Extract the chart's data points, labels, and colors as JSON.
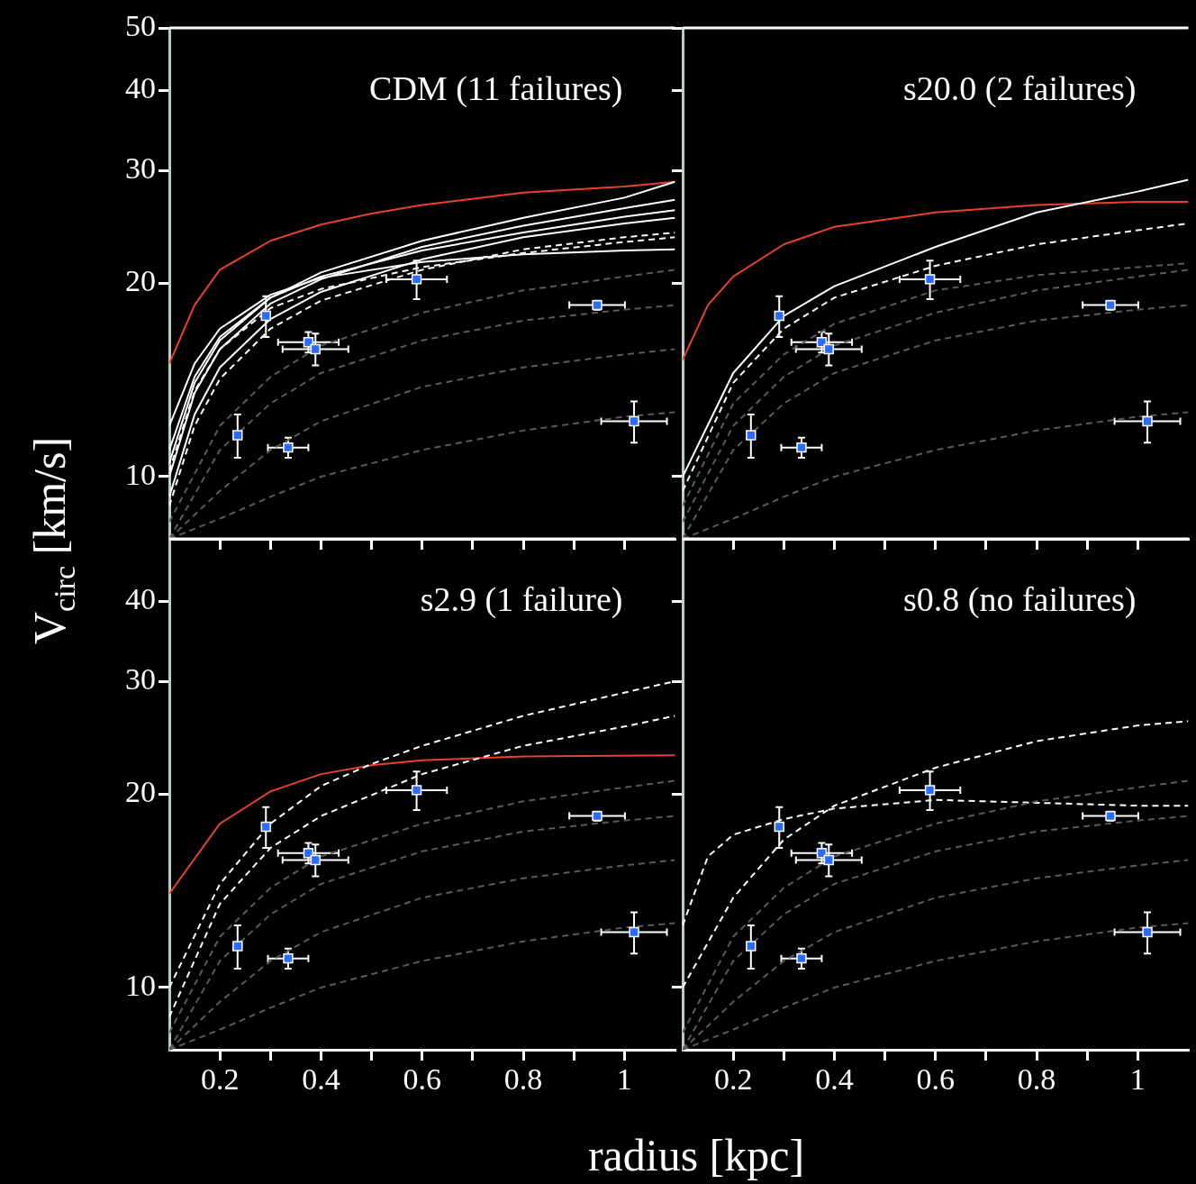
{
  "chart_data": [
    {
      "type": "line",
      "xlim": [
        0.1,
        1.1
      ],
      "ylim": [
        8,
        50
      ],
      "log": "y",
      "grid": false,
      "tick_labels": "y",
      "ylabel": "V$_{circ}$ [km/s]",
      "annotations": [
        "CDM (11 failures)"
      ],
      "xticks": [
        {
          "value": 0.2,
          "label": null
        },
        {
          "value": 0.3,
          "label": null
        },
        {
          "value": 0.4,
          "label": null
        },
        {
          "value": 0.5,
          "label": null
        },
        {
          "value": 0.6,
          "label": null
        },
        {
          "value": 0.7,
          "label": null
        },
        {
          "value": 0.8,
          "label": null
        },
        {
          "value": 0.9,
          "label": null
        },
        {
          "value": 1,
          "label": null
        }
      ],
      "yticks": [
        10,
        20,
        30,
        40,
        50
      ],
      "series": [
        {
          "color": "#5a5a5a",
          "line_style": "dashed",
          "marker": "none",
          "x": [
            0.1,
            0.2,
            0.3,
            0.4,
            0.6,
            0.8,
            1.0,
            1.1
          ],
          "values": [
            8.5,
            12,
            14.3,
            16,
            18,
            19.5,
            20.5,
            21
          ]
        },
        {
          "color": "#5a5a5a",
          "line_style": "dashed",
          "marker": "none",
          "x": [
            0.1,
            0.2,
            0.3,
            0.4,
            0.6,
            0.8,
            1.0,
            1.1
          ],
          "values": [
            8,
            11,
            13,
            14.5,
            16.3,
            17.5,
            18.2,
            18.5
          ]
        },
        {
          "color": "#5a5a5a",
          "line_style": "dashed",
          "marker": "none",
          "x": [
            0.1,
            0.2,
            0.3,
            0.4,
            0.6,
            0.8,
            1.0,
            1.1
          ],
          "values": [
            8,
            9.5,
            11,
            12.2,
            13.8,
            14.8,
            15.5,
            15.8
          ]
        },
        {
          "color": "#5a5a5a",
          "line_style": "dashed",
          "marker": "none",
          "x": [
            0.1,
            0.2,
            0.3,
            0.4,
            0.6,
            0.8,
            1.0,
            1.1
          ],
          "values": [
            8,
            8.6,
            9.3,
            10,
            11,
            11.8,
            12.4,
            12.6
          ]
        },
        {
          "color": "#ffffff",
          "line_style": "solid",
          "marker": "none",
          "x": [
            0.1,
            0.15,
            0.2,
            0.3,
            0.4,
            0.6,
            0.8,
            1.0,
            1.1
          ],
          "values": [
            10.5,
            14,
            16.3,
            19,
            20.8,
            23.3,
            25.3,
            27.2,
            28.8
          ]
        },
        {
          "color": "#ffffff",
          "line_style": "solid",
          "marker": "none",
          "x": [
            0.1,
            0.15,
            0.2,
            0.3,
            0.4,
            0.6,
            0.8,
            1.0,
            1.1
          ],
          "values": [
            10,
            13.5,
            15.8,
            18.6,
            20.3,
            22.8,
            24.6,
            26.2,
            27
          ]
        },
        {
          "color": "#ffffff",
          "line_style": "solid",
          "marker": "none",
          "x": [
            0.1,
            0.15,
            0.2,
            0.3,
            0.4,
            0.6,
            0.8,
            1.0,
            1.1
          ],
          "values": [
            11,
            14.3,
            16.5,
            19,
            20.5,
            22.5,
            24,
            25.4,
            26
          ]
        },
        {
          "color": "#ffffff",
          "line_style": "solid",
          "marker": "none",
          "x": [
            0.1,
            0.15,
            0.2,
            0.3,
            0.4,
            0.6,
            0.8,
            1.0,
            1.1
          ],
          "values": [
            12,
            15,
            17,
            19.2,
            20.4,
            21.6,
            22.2,
            22.5,
            22.6
          ]
        },
        {
          "color": "#ffffff",
          "line_style": "solid",
          "marker": "none",
          "x": [
            0.1,
            0.15,
            0.2,
            0.3,
            0.4,
            0.6,
            0.8,
            1.0,
            1.1
          ],
          "values": [
            9.3,
            12.5,
            14.8,
            17.6,
            19.4,
            21.8,
            23.6,
            24.8,
            25.3
          ]
        },
        {
          "color": "#ffffff",
          "line_style": "dashed",
          "marker": "none",
          "x": [
            0.1,
            0.15,
            0.2,
            0.3,
            0.4,
            0.6,
            0.8,
            1.0,
            1.1
          ],
          "values": [
            9,
            12,
            14.2,
            17,
            18.8,
            21,
            22.6,
            23.6,
            24
          ]
        },
        {
          "color": "#ffffff",
          "line_style": "dashed",
          "marker": "none",
          "x": [
            0.1,
            0.15,
            0.2,
            0.3,
            0.4,
            0.6,
            0.8,
            1.0,
            1.1
          ],
          "values": [
            10.2,
            13.6,
            15.8,
            18.3,
            19.6,
            21.2,
            22.3,
            23.2,
            23.6
          ]
        },
        {
          "color": "#e8412c",
          "line_style": "solid",
          "marker": "none",
          "x": [
            0.1,
            0.15,
            0.2,
            0.3,
            0.4,
            0.5,
            0.6,
            0.8,
            1.0,
            1.1
          ],
          "values": [
            15,
            18.5,
            21,
            23.3,
            24.7,
            25.7,
            26.5,
            27.7,
            28.3,
            28.8
          ]
        },
        {
          "type": "scatter",
          "color": "#2b6bff",
          "marker": "square",
          "x": [
            0.235,
            0.291,
            0.335,
            0.375,
            0.389,
            0.589,
            0.946,
            1.019
          ],
          "values": [
            11.6,
            17.8,
            11.1,
            16.2,
            15.8,
            20.3,
            18.5,
            12.2
          ],
          "errors": [
            0.9,
            1.3,
            0.4,
            0.6,
            0.9,
            1.4,
            0.3,
            0.9
          ],
          "xerrors": [
            null,
            null,
            0.04,
            0.06,
            0.065,
            0.06,
            0.055,
            0.065
          ]
        }
      ]
    },
    {
      "type": "line",
      "xlim": [
        0.1,
        1.1
      ],
      "ylim": [
        8,
        50
      ],
      "log": "y",
      "grid": false,
      "tick_labels": false,
      "annotations": [
        "s20.0 (2 failures)"
      ],
      "xticks": [
        {
          "value": 0.2,
          "label": null
        },
        {
          "value": 0.3,
          "label": null
        },
        {
          "value": 0.4,
          "label": null
        },
        {
          "value": 0.5,
          "label": null
        },
        {
          "value": 0.6,
          "label": null
        },
        {
          "value": 0.7,
          "label": null
        },
        {
          "value": 0.8,
          "label": null
        },
        {
          "value": 0.9,
          "label": null
        },
        {
          "value": 1,
          "label": null
        }
      ],
      "yticks": [
        10,
        20,
        30,
        40,
        50
      ],
      "series": [
        {
          "color": "#5a5a5a",
          "line_style": "dashed",
          "marker": "none",
          "x": [
            0.1,
            0.2,
            0.3,
            0.4,
            0.6,
            0.8,
            1.0,
            1.1
          ],
          "values": [
            8.5,
            12,
            14.3,
            16,
            18,
            19.5,
            20.5,
            21
          ]
        },
        {
          "color": "#5a5a5a",
          "line_style": "dashed",
          "marker": "none",
          "x": [
            0.1,
            0.2,
            0.3,
            0.4,
            0.6,
            0.8,
            1.0,
            1.1
          ],
          "values": [
            8,
            11,
            13,
            14.5,
            16.3,
            17.5,
            18.2,
            18.5
          ]
        },
        {
          "color": "#5a5a5a",
          "line_style": "dashed",
          "marker": "none",
          "x": [
            0.1,
            0.2,
            0.3,
            0.4,
            0.6,
            0.8,
            1.0,
            1.1
          ],
          "values": [
            9,
            13,
            15.5,
            17.3,
            19.5,
            20.6,
            21.2,
            21.5
          ]
        },
        {
          "color": "#5a5a5a",
          "line_style": "dashed",
          "marker": "none",
          "x": [
            0.1,
            0.2,
            0.3,
            0.4,
            0.6,
            0.8,
            1.0,
            1.1
          ],
          "values": [
            8,
            8.6,
            9.3,
            10,
            11,
            11.8,
            12.4,
            12.6
          ]
        },
        {
          "color": "#ffffff",
          "line_style": "solid",
          "marker": "none",
          "x": [
            0.1,
            0.2,
            0.3,
            0.4,
            0.6,
            0.8,
            1.0,
            1.1
          ],
          "values": [
            10,
            14.5,
            17.8,
            19.8,
            22.8,
            25.8,
            27.8,
            29
          ]
        },
        {
          "color": "#ffffff",
          "line_style": "dashed",
          "marker": "none",
          "x": [
            0.1,
            0.2,
            0.3,
            0.4,
            0.6,
            0.8,
            1.0,
            1.1
          ],
          "values": [
            9.5,
            14,
            17,
            19,
            21.3,
            23,
            24.2,
            24.8
          ]
        },
        {
          "color": "#e8412c",
          "line_style": "solid",
          "marker": "none",
          "x": [
            0.1,
            0.15,
            0.2,
            0.3,
            0.4,
            0.6,
            0.8,
            1.0,
            1.1
          ],
          "values": [
            15.2,
            18.5,
            20.5,
            23,
            24.5,
            25.8,
            26.5,
            26.8,
            26.8
          ]
        },
        {
          "type": "scatter",
          "color": "#2b6bff",
          "marker": "square",
          "x": [
            0.235,
            0.291,
            0.335,
            0.375,
            0.389,
            0.589,
            0.946,
            1.019
          ],
          "values": [
            11.6,
            17.8,
            11.1,
            16.2,
            15.8,
            20.3,
            18.5,
            12.2
          ],
          "errors": [
            0.9,
            1.3,
            0.4,
            0.6,
            0.9,
            1.4,
            0.3,
            0.9
          ],
          "xerrors": [
            null,
            null,
            0.04,
            0.06,
            0.065,
            0.06,
            0.055,
            0.065
          ]
        }
      ]
    },
    {
      "type": "line",
      "xlim": [
        0.1,
        1.1
      ],
      "ylim": [
        8,
        50
      ],
      "log": "y",
      "grid": false,
      "xlabel": "radius [kpc]",
      "annotations": [
        "s2.9 (1 failure)"
      ],
      "xticks": [
        {
          "value": 0.2,
          "label": "0.2"
        },
        {
          "value": 0.3,
          "label": null
        },
        {
          "value": 0.4,
          "label": "0.4"
        },
        {
          "value": 0.5,
          "label": null
        },
        {
          "value": 0.6,
          "label": "0.6"
        },
        {
          "value": 0.7,
          "label": null
        },
        {
          "value": 0.8,
          "label": "0.8"
        },
        {
          "value": 0.9,
          "label": null
        },
        {
          "value": 1,
          "label": "1"
        }
      ],
      "yticks": [
        10,
        20,
        30,
        40
      ],
      "series": [
        {
          "color": "#5a5a5a",
          "line_style": "dashed",
          "marker": "none",
          "x": [
            0.1,
            0.2,
            0.3,
            0.4,
            0.6,
            0.8,
            1.0,
            1.1
          ],
          "values": [
            8.5,
            12,
            14.3,
            16,
            18,
            19.5,
            20.5,
            21
          ]
        },
        {
          "color": "#5a5a5a",
          "line_style": "dashed",
          "marker": "none",
          "x": [
            0.1,
            0.2,
            0.3,
            0.4,
            0.6,
            0.8,
            1.0,
            1.1
          ],
          "values": [
            8,
            11,
            13,
            14.5,
            16.3,
            17.5,
            18.2,
            18.5
          ]
        },
        {
          "color": "#5a5a5a",
          "line_style": "dashed",
          "marker": "none",
          "x": [
            0.1,
            0.2,
            0.3,
            0.4,
            0.6,
            0.8,
            1.0,
            1.1
          ],
          "values": [
            8,
            9.5,
            11,
            12.2,
            13.8,
            14.8,
            15.5,
            15.8
          ]
        },
        {
          "color": "#5a5a5a",
          "line_style": "dashed",
          "marker": "none",
          "x": [
            0.1,
            0.2,
            0.3,
            0.4,
            0.6,
            0.8,
            1.0,
            1.1
          ],
          "values": [
            8,
            8.6,
            9.3,
            10,
            11,
            11.8,
            12.4,
            12.6
          ]
        },
        {
          "color": "#ffffff",
          "line_style": "dashed",
          "marker": "none",
          "x": [
            0.1,
            0.2,
            0.3,
            0.4,
            0.5,
            0.6,
            0.8,
            1.0,
            1.1
          ],
          "values": [
            10,
            14.5,
            18,
            20.6,
            22.3,
            23.8,
            26.5,
            28.8,
            30
          ]
        },
        {
          "color": "#ffffff",
          "line_style": "dashed",
          "marker": "none",
          "x": [
            0.1,
            0.2,
            0.3,
            0.4,
            0.6,
            0.8,
            1.0,
            1.1
          ],
          "values": [
            9,
            13.5,
            16.5,
            18.5,
            21.5,
            23.8,
            25.5,
            26.5
          ]
        },
        {
          "color": "#e8412c",
          "line_style": "solid",
          "marker": "none",
          "x": [
            0.1,
            0.2,
            0.3,
            0.4,
            0.5,
            0.6,
            0.8,
            1.1
          ],
          "values": [
            14,
            18,
            20.2,
            21.5,
            22.2,
            22.6,
            22.9,
            23
          ]
        },
        {
          "type": "scatter",
          "color": "#2b6bff",
          "marker": "square",
          "x": [
            0.235,
            0.291,
            0.335,
            0.375,
            0.389,
            0.589,
            0.946,
            1.019
          ],
          "values": [
            11.6,
            17.8,
            11.1,
            16.2,
            15.8,
            20.3,
            18.5,
            12.2
          ],
          "errors": [
            0.9,
            1.3,
            0.4,
            0.6,
            0.9,
            1.4,
            0.3,
            0.9
          ],
          "xerrors": [
            null,
            null,
            0.04,
            0.06,
            0.065,
            0.06,
            0.055,
            0.065
          ]
        }
      ]
    },
    {
      "type": "line",
      "xlim": [
        0.1,
        1.1
      ],
      "ylim": [
        8,
        50
      ],
      "log": "y",
      "grid": false,
      "tick_labels": "x",
      "annotations": [
        "s0.8 (no failures)"
      ],
      "xticks": [
        {
          "value": 0.2,
          "label": "0.2"
        },
        {
          "value": 0.3,
          "label": null
        },
        {
          "value": 0.4,
          "label": "0.4"
        },
        {
          "value": 0.5,
          "label": null
        },
        {
          "value": 0.6,
          "label": "0.6"
        },
        {
          "value": 0.7,
          "label": null
        },
        {
          "value": 0.8,
          "label": "0.8"
        },
        {
          "value": 0.9,
          "label": null
        },
        {
          "value": 1,
          "label": "1"
        }
      ],
      "yticks": [
        10,
        20,
        30,
        40
      ],
      "series": [
        {
          "color": "#5a5a5a",
          "line_style": "dashed",
          "marker": "none",
          "x": [
            0.1,
            0.2,
            0.3,
            0.4,
            0.6,
            0.8,
            1.0,
            1.1
          ],
          "values": [
            8.5,
            12,
            14.3,
            16,
            18,
            19.5,
            20.5,
            21
          ]
        },
        {
          "color": "#5a5a5a",
          "line_style": "dashed",
          "marker": "none",
          "x": [
            0.1,
            0.2,
            0.3,
            0.4,
            0.6,
            0.8,
            1.0,
            1.1
          ],
          "values": [
            8,
            11,
            13,
            14.5,
            16.3,
            17.5,
            18.2,
            18.5
          ]
        },
        {
          "color": "#5a5a5a",
          "line_style": "dashed",
          "marker": "none",
          "x": [
            0.1,
            0.2,
            0.3,
            0.4,
            0.6,
            0.8,
            1.0,
            1.1
          ],
          "values": [
            8,
            9.5,
            11,
            12.2,
            13.8,
            14.8,
            15.5,
            15.8
          ]
        },
        {
          "color": "#5a5a5a",
          "line_style": "dashed",
          "marker": "none",
          "x": [
            0.1,
            0.2,
            0.3,
            0.4,
            0.6,
            0.8,
            1.0,
            1.1
          ],
          "values": [
            8,
            8.6,
            9.3,
            10,
            11,
            11.8,
            12.4,
            12.6
          ]
        },
        {
          "color": "#ffffff",
          "line_style": "dashed",
          "marker": "none",
          "x": [
            0.1,
            0.2,
            0.3,
            0.4,
            0.6,
            0.8,
            1.0,
            1.1
          ],
          "values": [
            10,
            13.8,
            17,
            19.2,
            22,
            24.2,
            25.6,
            26
          ]
        },
        {
          "color": "#ffffff",
          "line_style": "dashed",
          "marker": "none",
          "x": [
            0.1,
            0.15,
            0.2,
            0.3,
            0.4,
            0.6,
            0.8,
            1.0,
            1.1
          ],
          "values": [
            12.5,
            16,
            17.3,
            18.3,
            19,
            19.6,
            19.4,
            19.2,
            19.2
          ]
        },
        {
          "type": "scatter",
          "color": "#2b6bff",
          "marker": "square",
          "x": [
            0.235,
            0.291,
            0.335,
            0.375,
            0.389,
            0.589,
            0.946,
            1.019
          ],
          "values": [
            11.6,
            17.8,
            11.1,
            16.2,
            15.8,
            20.3,
            18.5,
            12.2
          ],
          "errors": [
            0.9,
            1.3,
            0.4,
            0.6,
            0.9,
            1.4,
            0.3,
            0.9
          ],
          "xerrors": [
            null,
            null,
            0.04,
            0.06,
            0.065,
            0.06,
            0.055,
            0.065
          ]
        }
      ]
    }
  ]
}
